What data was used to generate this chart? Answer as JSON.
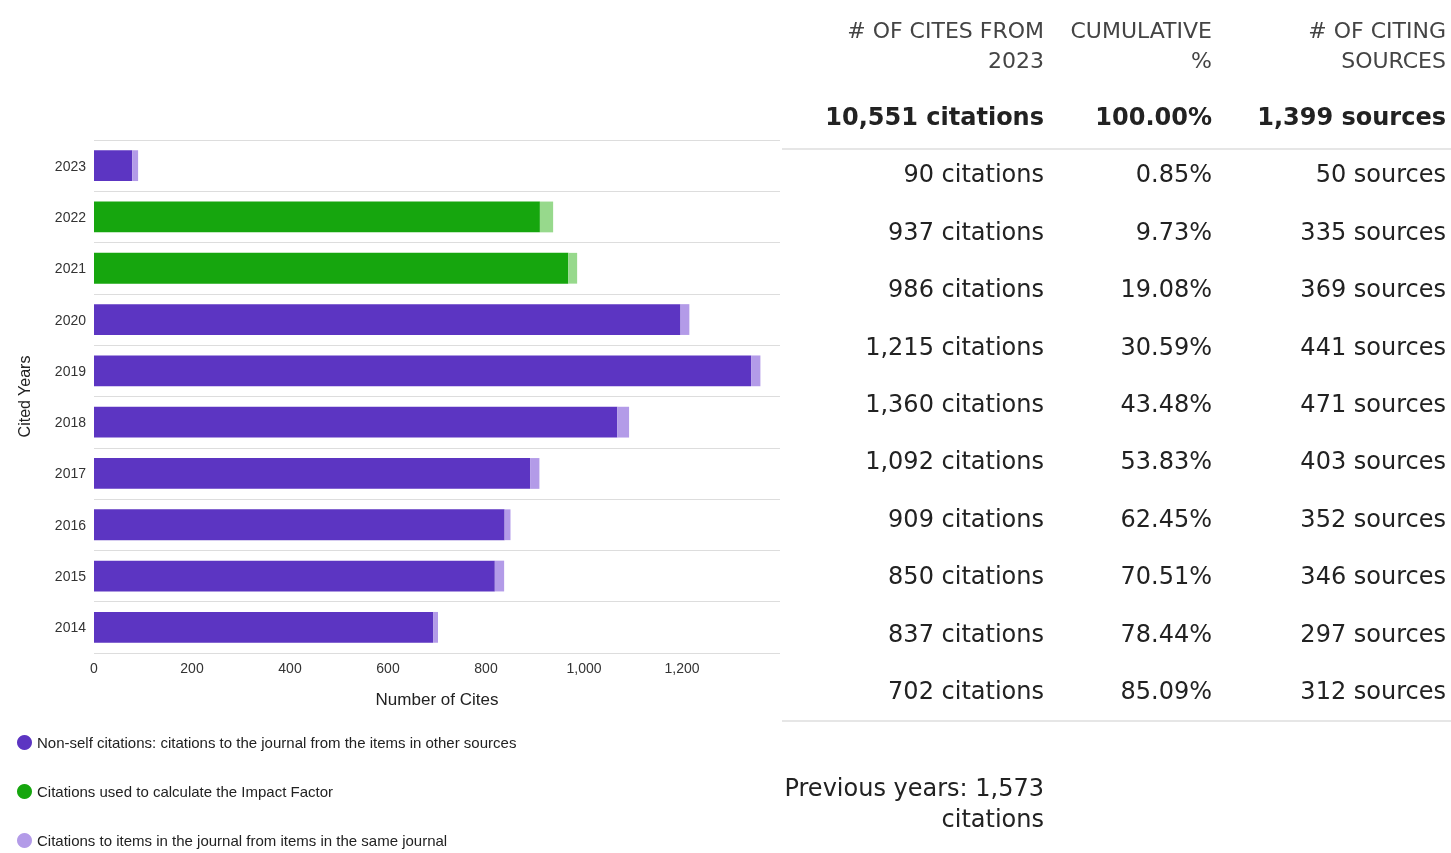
{
  "chart_data": [
    {
      "type": "bar",
      "orientation": "horizontal",
      "stacked": true,
      "xlabel": "Number of Cites",
      "ylabel": "Cited Years",
      "categories": [
        "2023",
        "2022",
        "2021",
        "2020",
        "2019",
        "2018",
        "2017",
        "2016",
        "2015",
        "2014"
      ],
      "series": [
        {
          "name": "Non-self citations: citations to the journal from the items in other sources",
          "color": "#5c35c2",
          "values": [
            78,
            null,
            null,
            1197,
            1341,
            1068,
            890,
            838,
            818,
            692
          ]
        },
        {
          "name": "Citations used to calculate the Impact Factor",
          "color": "#16a60e",
          "values": [
            null,
            910,
            968,
            null,
            null,
            null,
            null,
            null,
            null,
            null
          ]
        },
        {
          "name": "Citations to items in the journal from items in the same journal",
          "color": "#b39be8",
          "colors": [
            "#b39be8",
            "#97d98c",
            "#97d98c",
            "#b39be8",
            "#b39be8",
            "#b39be8",
            "#b39be8",
            "#b39be8",
            "#b39be8",
            "#b39be8"
          ],
          "values": [
            12,
            27,
            18,
            18,
            19,
            24,
            19,
            12,
            19,
            10
          ]
        }
      ],
      "xlim": [
        0,
        1400
      ],
      "xticks": [
        0,
        200,
        400,
        600,
        800,
        {
          "value": 1000,
          "label": "1,000"
        },
        {
          "value": 1200,
          "label": "1,200"
        }
      ],
      "grid": "y",
      "legend": "bottom"
    },
    {
      "type": "other",
      "annotations": [
        "# OF CITES FROM 2023",
        "CUMULATIVE %",
        "# OF CITING SOURCES",
        "10,551 citations",
        "100.00%",
        "1,399 sources",
        "90 citations",
        "0.85%",
        "50 sources",
        "937 citations",
        "9.73%",
        "335 sources",
        "986 citations",
        "19.08%",
        "369 sources",
        "1,215 citations",
        "30.59%",
        "441 sources",
        "1,360 citations",
        "43.48%",
        "471 sources",
        "1,092 citations",
        "53.83%",
        "403 sources",
        "909 citations",
        "62.45%",
        "352 sources",
        "850 citations",
        "70.51%",
        "346 sources",
        "837 citations",
        "78.44%",
        "297 sources",
        "702 citations",
        "85.09%",
        "312 sources",
        "Previous years: 1,573 citations"
      ]
    }
  ]
}
